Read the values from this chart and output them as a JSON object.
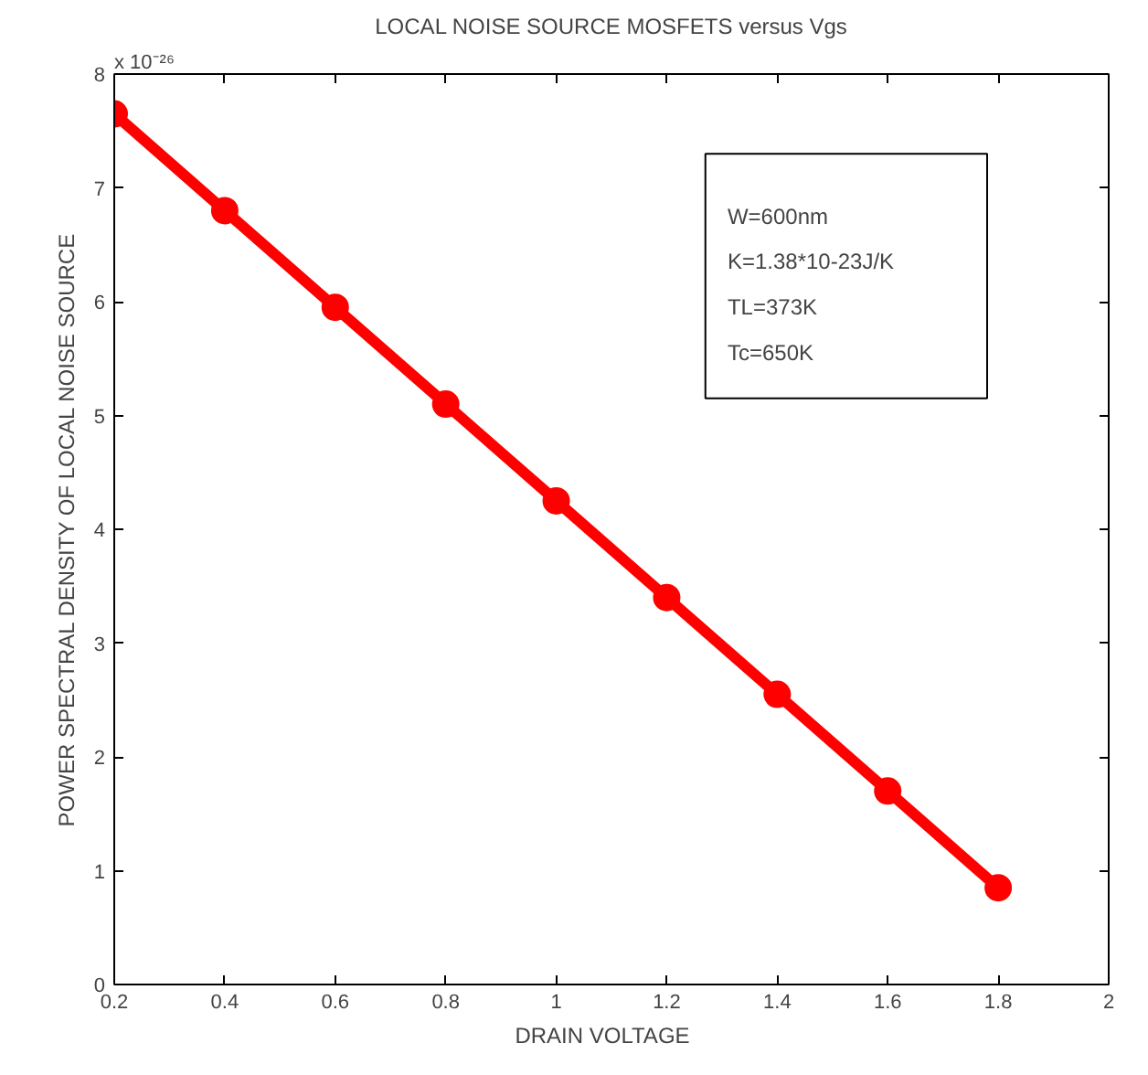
{
  "chart_data": {
    "type": "line",
    "title": "LOCAL NOISE SOURCE MOSFETS versus Vgs",
    "xlabel": "DRAIN    VOLTAGE",
    "ylabel": "POWER SPECTRAL DENSITY OF LOCAL NOISE SOURCE",
    "x": [
      0.2,
      0.4,
      0.6,
      0.8,
      1.0,
      1.2,
      1.4,
      1.6,
      1.8
    ],
    "series": [
      {
        "color": "#ff0000",
        "values": [
          7.65,
          6.8,
          5.95,
          5.1,
          4.25,
          3.4,
          2.55,
          1.7,
          0.85
        ]
      }
    ],
    "xlim": [
      0.2,
      2
    ],
    "xticks": [
      0.2,
      0.4,
      0.6,
      0.8,
      1,
      1.2,
      1.4,
      1.6,
      1.8,
      2
    ],
    "ylim": [
      0,
      8
    ],
    "yticks": [
      0,
      1,
      2,
      3,
      4,
      5,
      6,
      7,
      8
    ],
    "annotations": [
      "x 10⁻²⁶",
      "W=600nm",
      "K=1.38*10-23J/K",
      "TL=373K",
      "Tc=650K"
    ],
    "marker": "circle",
    "line_style": "solid",
    "grid": false
  }
}
